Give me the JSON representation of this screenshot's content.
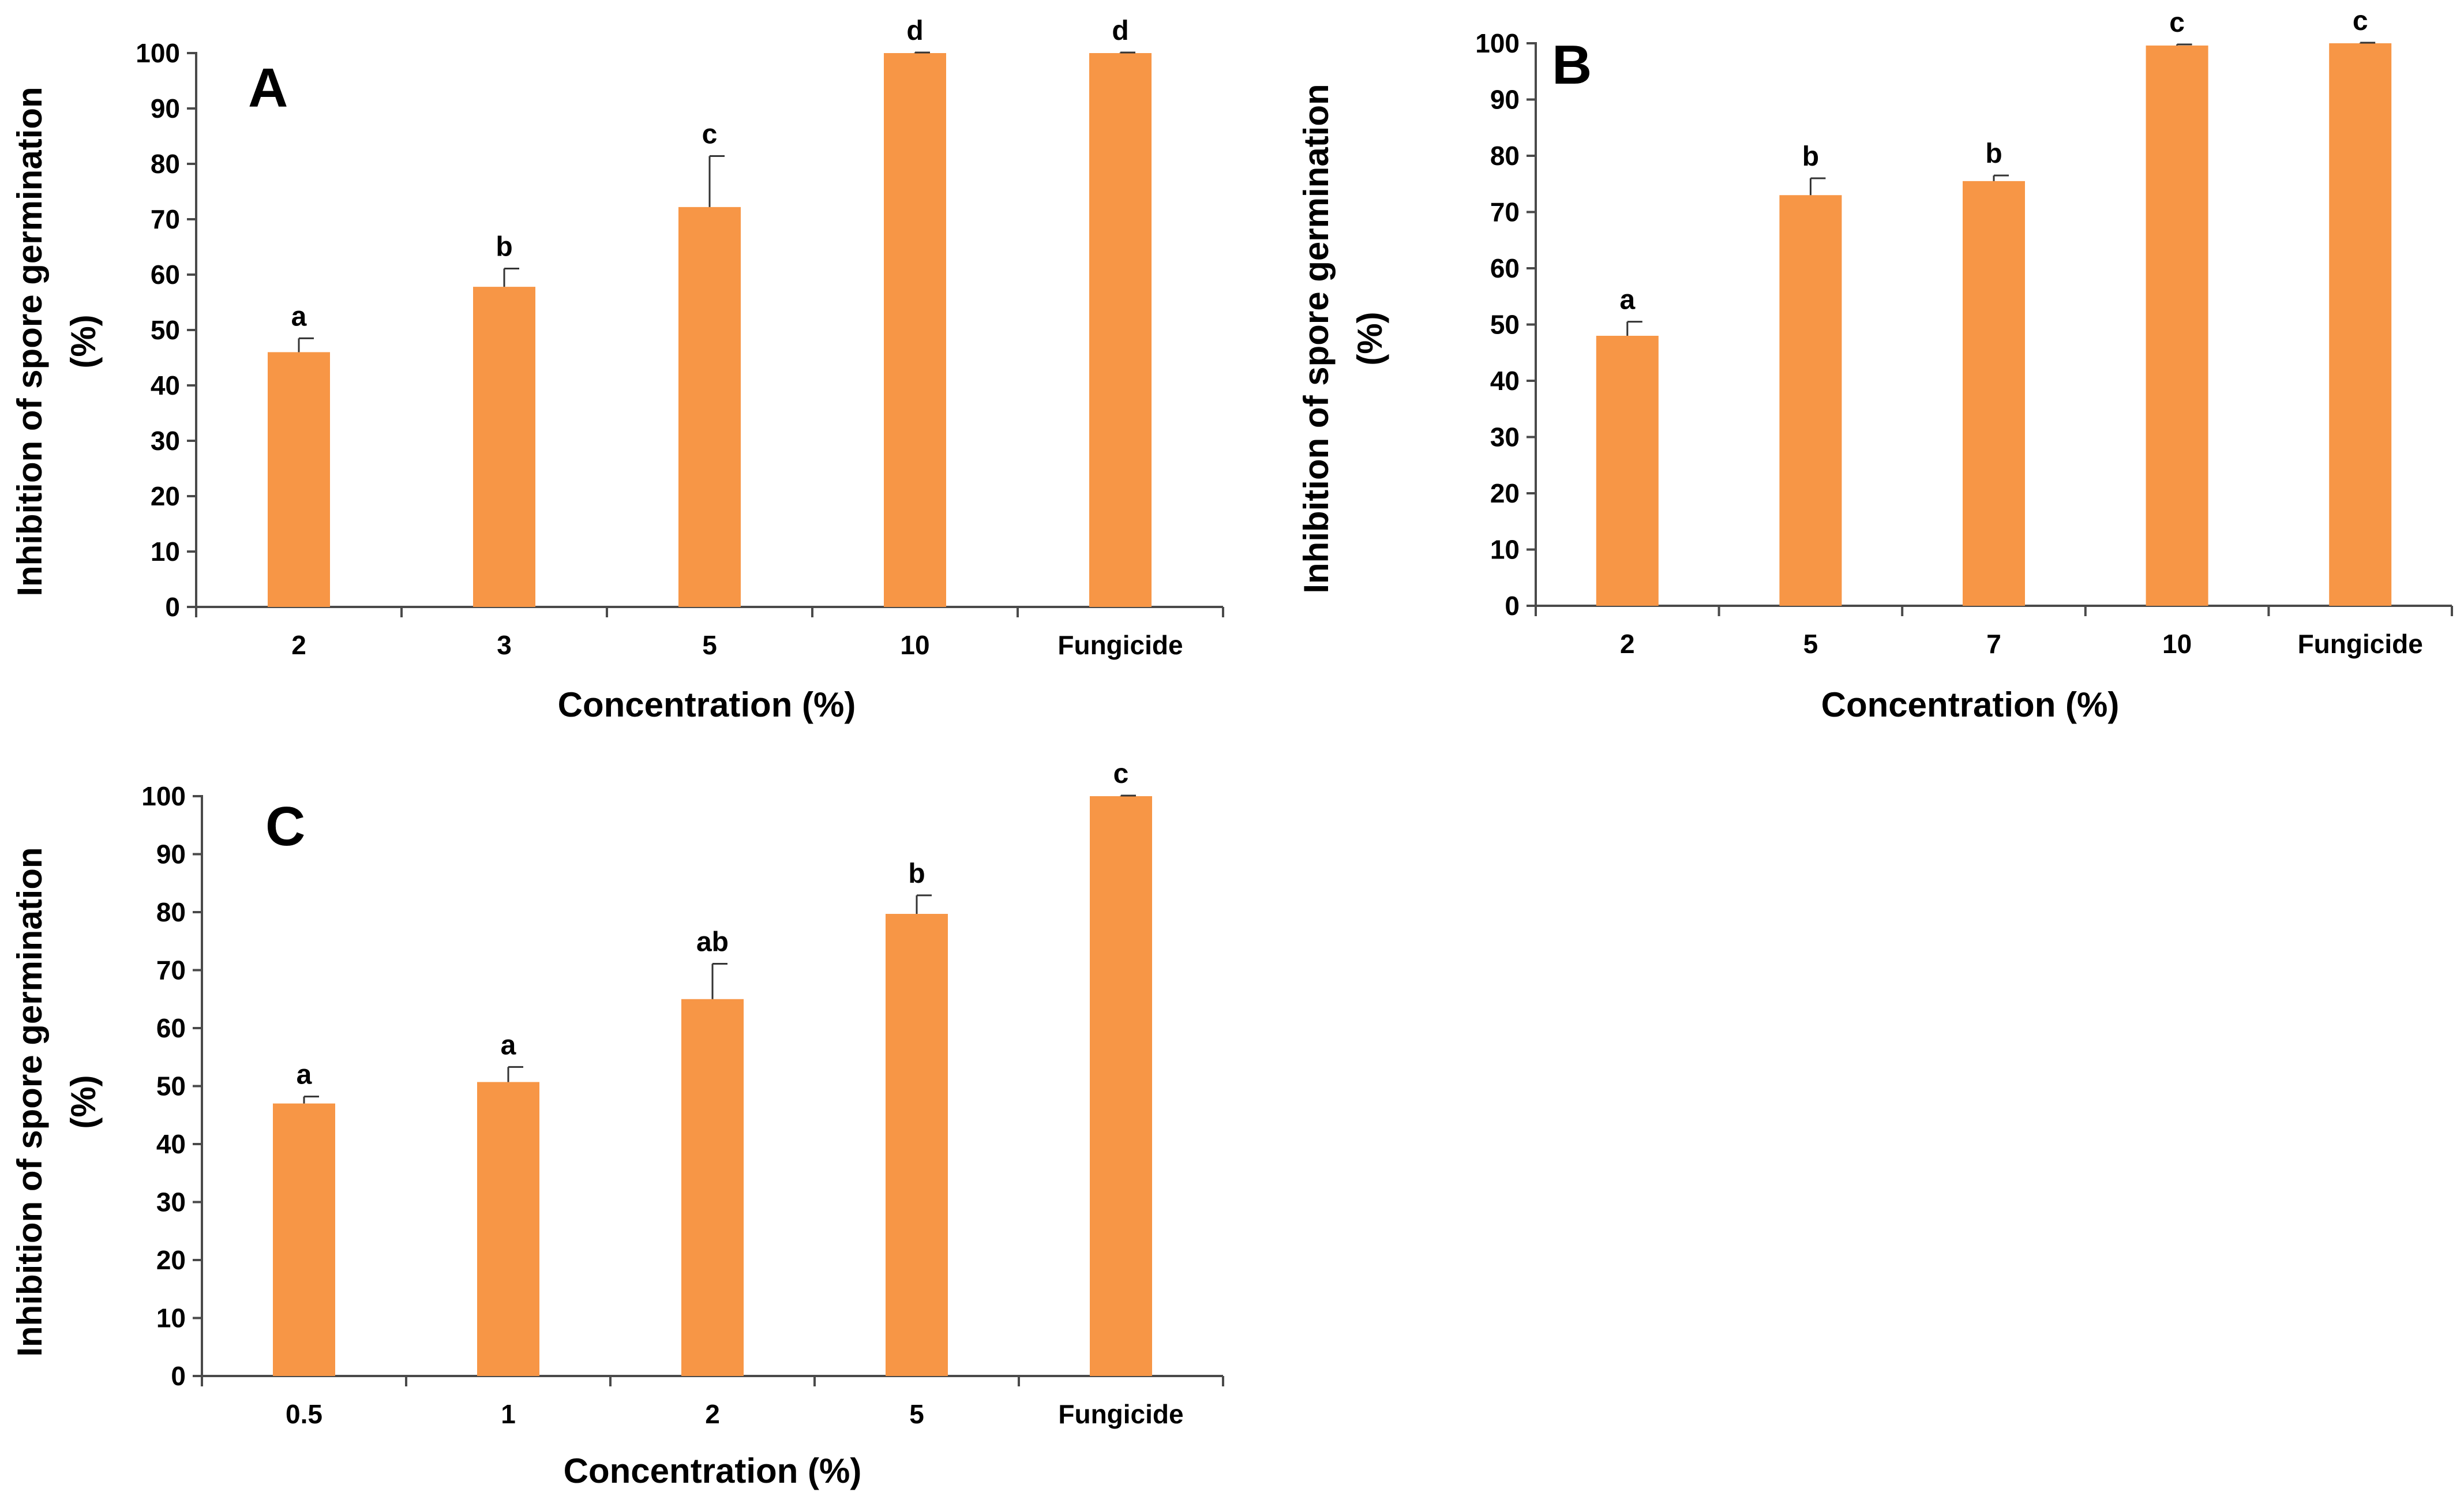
{
  "colors": {
    "bar": "#f79646",
    "axis": "#4a4a4a",
    "errorbar": "#333333",
    "text": "#000000"
  },
  "chart_data": [
    {
      "type": "bar",
      "panel_label": "A",
      "xlabel": "Concentration (%)",
      "ylabel_line1": "Inhibition of spore germination",
      "ylabel_line2": "(%)",
      "ylim": [
        0,
        100
      ],
      "yticks": [
        0,
        10,
        20,
        30,
        40,
        50,
        60,
        70,
        80,
        90,
        100
      ],
      "categories": [
        "2",
        "3",
        "5",
        "10",
        "Fungicide"
      ],
      "values": [
        46,
        57.8,
        72.2,
        100,
        100
      ],
      "errors": [
        2.5,
        3.3,
        9.2,
        0.1,
        0.1
      ],
      "significance": [
        "a",
        "b",
        "c",
        "d",
        "d"
      ]
    },
    {
      "type": "bar",
      "panel_label": "B",
      "xlabel": "Concentration (%)",
      "ylabel_line1": "Inhibition of spore germination",
      "ylabel_line2": "(%)",
      "ylim": [
        0,
        100
      ],
      "yticks": [
        0,
        10,
        20,
        30,
        40,
        50,
        60,
        70,
        80,
        90,
        100
      ],
      "categories": [
        "2",
        "5",
        "7",
        "10",
        "Fungicide"
      ],
      "values": [
        48,
        73,
        75.5,
        99.6,
        100
      ],
      "errors": [
        2.5,
        3,
        1,
        0.2,
        0.1
      ],
      "significance": [
        "a",
        "b",
        "b",
        "c",
        "c"
      ]
    },
    {
      "type": "bar",
      "panel_label": "C",
      "xlabel": "Concentration (%)",
      "ylabel_line1": "Inhibition of spore germination",
      "ylabel_line2": "(%)",
      "ylim": [
        0,
        100
      ],
      "yticks": [
        0,
        10,
        20,
        30,
        40,
        50,
        60,
        70,
        80,
        90,
        100
      ],
      "categories": [
        "0.5",
        "1",
        "2",
        "5",
        "Fungicide"
      ],
      "values": [
        47,
        50.7,
        65,
        79.7,
        100
      ],
      "errors": [
        1.2,
        2.6,
        6.1,
        3.2,
        0.1
      ],
      "significance": [
        "a",
        "a",
        "ab",
        "b",
        "c"
      ]
    }
  ]
}
